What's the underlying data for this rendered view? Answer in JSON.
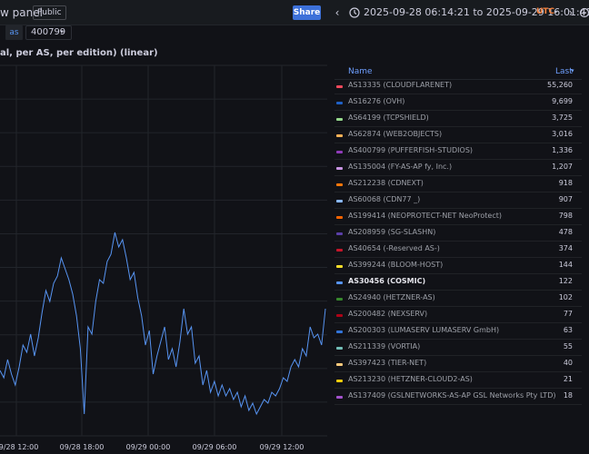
{
  "header": {
    "title": "w panel",
    "badge": "Public",
    "share_label": "Share",
    "prev_icon": "chevron-left-icon",
    "next_icon": "chevron-right-icon",
    "time_range": "2025-09-28 06:14:21 to 2025-09-29 16:01:41",
    "timezone": "UTC"
  },
  "variable": {
    "label": "as",
    "value": "400799"
  },
  "panel": {
    "title": "al, per AS, per edition) (linear)"
  },
  "chart_data": {
    "type": "line",
    "title": "al, per AS, per edition) (linear)",
    "x_ticks": [
      "09/28 12:00",
      "09/28 18:00",
      "09/29 00:00",
      "09/29 06:00",
      "09/29 12:00"
    ],
    "grid": true,
    "series": [
      {
        "name": "AS30456 (COSMIC)",
        "color": "#5794f2",
        "values": [
          0.18,
          0.16,
          0.21,
          0.17,
          0.14,
          0.19,
          0.25,
          0.23,
          0.28,
          0.22,
          0.27,
          0.34,
          0.4,
          0.37,
          0.42,
          0.44,
          0.49,
          0.46,
          0.43,
          0.39,
          0.33,
          0.24,
          0.06,
          0.3,
          0.28,
          0.37,
          0.43,
          0.42,
          0.48,
          0.5,
          0.56,
          0.52,
          0.54,
          0.49,
          0.43,
          0.45,
          0.38,
          0.33,
          0.25,
          0.29,
          0.17,
          0.22,
          0.26,
          0.3,
          0.21,
          0.24,
          0.19,
          0.26,
          0.35,
          0.28,
          0.3,
          0.2,
          0.22,
          0.14,
          0.18,
          0.12,
          0.15,
          0.11,
          0.14,
          0.11,
          0.13,
          0.1,
          0.12,
          0.08,
          0.11,
          0.07,
          0.09,
          0.06,
          0.08,
          0.1,
          0.09,
          0.12,
          0.11,
          0.13,
          0.16,
          0.15,
          0.19,
          0.21,
          0.19,
          0.24,
          0.22,
          0.3,
          0.27,
          0.28,
          0.25,
          0.35
        ]
      }
    ]
  },
  "legend": {
    "col_name": "Name",
    "col_last": "Last",
    "sort_icon": "sort-desc-icon",
    "rows": [
      {
        "name": "AS13335 (CLOUDFLARENET)",
        "value": "55,260",
        "color": "#f2495c"
      },
      {
        "name": "AS16276 (OVH)",
        "value": "9,699",
        "color": "#1f60c4"
      },
      {
        "name": "AS64199 (TCPSHIELD)",
        "value": "3,725",
        "color": "#96d98d"
      },
      {
        "name": "AS62874 (WEB2OBJECTS)",
        "value": "3,016",
        "color": "#ffb357"
      },
      {
        "name": "AS400799 (PUFFERFISH-STUDIOS)",
        "value": "1,336",
        "color": "#8f3bb8"
      },
      {
        "name": "AS135004 (FY-AS-AP fy, Inc.)",
        "value": "1,207",
        "color": "#ca95e5"
      },
      {
        "name": "AS212238 (CDNEXT)",
        "value": "918",
        "color": "#ff780a"
      },
      {
        "name": "AS60068 (CDN77 _)",
        "value": "907",
        "color": "#8ab8ff"
      },
      {
        "name": "AS199414 (NEOPROTECT-NET NeoProtect)",
        "value": "798",
        "color": "#fa6400"
      },
      {
        "name": "AS208959 (SG-SLASHN)",
        "value": "478",
        "color": "#5a3fa8"
      },
      {
        "name": "AS40654 (-Reserved AS-)",
        "value": "374",
        "color": "#c4162a"
      },
      {
        "name": "AS399244 (BLOOM-HOST)",
        "value": "144",
        "color": "#fade2a"
      },
      {
        "name": "AS30456 (COSMIC)",
        "value": "122",
        "color": "#5794f2",
        "highlight": true
      },
      {
        "name": "AS24940 (HETZNER-AS)",
        "value": "102",
        "color": "#37872d"
      },
      {
        "name": "AS200482 (NEXSERV)",
        "value": "77",
        "color": "#ad0317"
      },
      {
        "name": "AS200303 (LUMASERV LUMASERV GmbH)",
        "value": "63",
        "color": "#3274d9"
      },
      {
        "name": "AS211339 (VORTIA)",
        "value": "55",
        "color": "#73bfb8"
      },
      {
        "name": "AS397423 (TIER-NET)",
        "value": "40",
        "color": "#ffcb7d"
      },
      {
        "name": "AS213230 (HETZNER-CLOUD2-AS)",
        "value": "21",
        "color": "#f2cc0c"
      },
      {
        "name": "AS137409 (GSLNETWORKS-AS-AP GSL Networks Pty LTD)",
        "value": "18",
        "color": "#a352cc"
      }
    ]
  }
}
